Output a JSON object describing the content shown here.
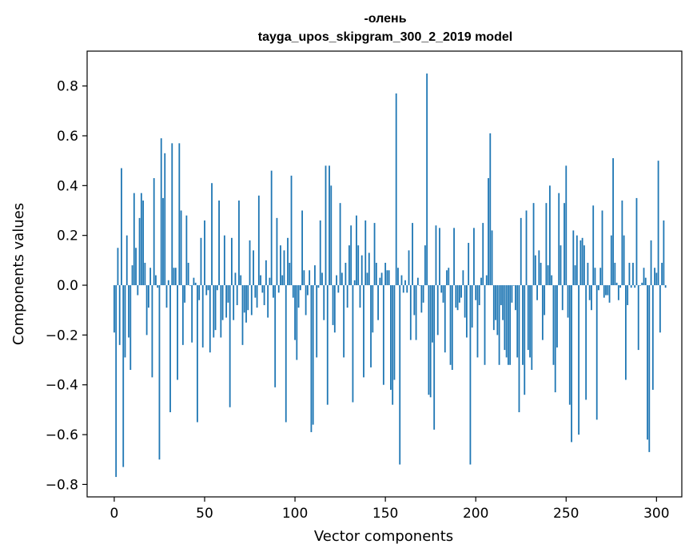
{
  "chart_data": {
    "type": "bar",
    "title_lines": [
      "-олень",
      "tayga_upos_skipgram_300_2_2019 model"
    ],
    "xlabel": "Vector components",
    "ylabel": "Components values",
    "xlim": [
      -15,
      314
    ],
    "ylim": [
      -0.85,
      0.94
    ],
    "xticks": [
      0,
      50,
      100,
      150,
      200,
      250,
      300
    ],
    "xtick_labels": [
      "0",
      "50",
      "100",
      "150",
      "200",
      "250",
      "300"
    ],
    "yticks": [
      -0.8,
      -0.6,
      -0.4,
      -0.2,
      0.0,
      0.2,
      0.4,
      0.6,
      0.8
    ],
    "ytick_labels": [
      "−0.8",
      "−0.6",
      "−0.4",
      "−0.2",
      "0.0",
      "0.2",
      "0.4",
      "0.6",
      "0.8"
    ],
    "bar_color": "#1f77b4",
    "grid": false,
    "values": [
      -0.19,
      -0.77,
      0.15,
      -0.24,
      0.47,
      -0.73,
      -0.29,
      0.2,
      -0.21,
      -0.34,
      0.08,
      0.37,
      0.15,
      -0.04,
      0.27,
      0.37,
      0.34,
      0.09,
      -0.2,
      -0.09,
      0.07,
      -0.37,
      0.43,
      0.04,
      -0.01,
      -0.7,
      0.59,
      0.35,
      0.53,
      -0.09,
      0.02,
      -0.51,
      0.57,
      0.07,
      0.07,
      -0.38,
      0.57,
      0.3,
      -0.24,
      -0.07,
      0.28,
      0.09,
      0.0,
      -0.23,
      0.03,
      0.01,
      -0.55,
      -0.06,
      0.19,
      -0.25,
      0.26,
      -0.04,
      -0.02,
      -0.27,
      0.41,
      -0.21,
      -0.18,
      -0.02,
      0.34,
      -0.21,
      -0.14,
      0.2,
      -0.13,
      -0.07,
      -0.49,
      0.19,
      -0.14,
      0.05,
      -0.08,
      0.34,
      0.04,
      -0.24,
      -0.11,
      -0.15,
      -0.1,
      0.18,
      -0.12,
      0.14,
      -0.05,
      -0.09,
      0.36,
      0.04,
      -0.03,
      -0.08,
      0.1,
      -0.13,
      0.03,
      0.46,
      -0.05,
      -0.41,
      0.27,
      -0.03,
      0.16,
      0.04,
      0.14,
      -0.55,
      0.19,
      0.09,
      0.44,
      -0.05,
      -0.22,
      -0.3,
      -0.09,
      -0.02,
      0.3,
      0.06,
      -0.12,
      -0.04,
      0.06,
      -0.59,
      -0.56,
      0.08,
      -0.29,
      -0.01,
      0.26,
      0.05,
      -0.14,
      0.48,
      -0.48,
      0.48,
      0.4,
      -0.16,
      -0.19,
      0.04,
      -0.03,
      0.33,
      0.05,
      -0.29,
      0.09,
      -0.09,
      0.16,
      0.24,
      -0.47,
      0.02,
      0.28,
      0.16,
      -0.09,
      0.12,
      -0.37,
      0.26,
      0.05,
      0.13,
      -0.33,
      -0.19,
      0.25,
      0.09,
      -0.14,
      0.03,
      0.05,
      -0.4,
      0.09,
      0.06,
      0.06,
      -0.42,
      -0.48,
      -0.38,
      0.77,
      0.07,
      -0.72,
      0.04,
      -0.03,
      0.02,
      -0.03,
      0.14,
      -0.22,
      0.25,
      -0.12,
      -0.22,
      0.03,
      0.0,
      -0.11,
      -0.07,
      0.16,
      0.85,
      -0.44,
      -0.45,
      -0.23,
      -0.58,
      0.24,
      -0.2,
      0.23,
      -0.03,
      -0.07,
      -0.27,
      0.06,
      0.07,
      -0.32,
      -0.34,
      0.23,
      -0.09,
      -0.1,
      -0.07,
      -0.05,
      0.06,
      -0.13,
      -0.21,
      0.17,
      -0.72,
      -0.17,
      0.23,
      -0.06,
      -0.29,
      -0.08,
      0.03,
      0.25,
      -0.32,
      0.04,
      0.43,
      0.61,
      0.22,
      -0.18,
      -0.14,
      -0.2,
      -0.32,
      -0.08,
      -0.14,
      -0.26,
      -0.29,
      -0.32,
      -0.32,
      -0.07,
      0.0,
      -0.1,
      -0.29,
      -0.51,
      0.27,
      -0.32,
      -0.44,
      0.3,
      -0.26,
      -0.29,
      -0.34,
      0.33,
      0.12,
      -0.06,
      0.14,
      0.09,
      -0.22,
      -0.12,
      0.33,
      0.08,
      0.4,
      0.04,
      -0.32,
      -0.43,
      -0.25,
      0.37,
      0.16,
      -0.1,
      0.33,
      0.48,
      -0.13,
      -0.48,
      -0.63,
      0.22,
      0.08,
      0.2,
      -0.6,
      0.18,
      0.19,
      0.16,
      -0.46,
      0.09,
      -0.06,
      -0.1,
      0.32,
      0.07,
      -0.54,
      -0.02,
      0.07,
      0.3,
      -0.05,
      -0.04,
      -0.04,
      -0.07,
      0.2,
      0.51,
      0.09,
      0.01,
      -0.06,
      -0.01,
      0.34,
      0.2,
      -0.38,
      -0.08,
      0.09,
      -0.01,
      0.09,
      -0.01,
      0.35,
      -0.26,
      0.0,
      0.01,
      0.07,
      0.03,
      -0.62,
      -0.67,
      0.18,
      -0.42,
      0.07,
      0.05,
      0.5,
      -0.19,
      0.09,
      0.26,
      -0.01
    ]
  }
}
